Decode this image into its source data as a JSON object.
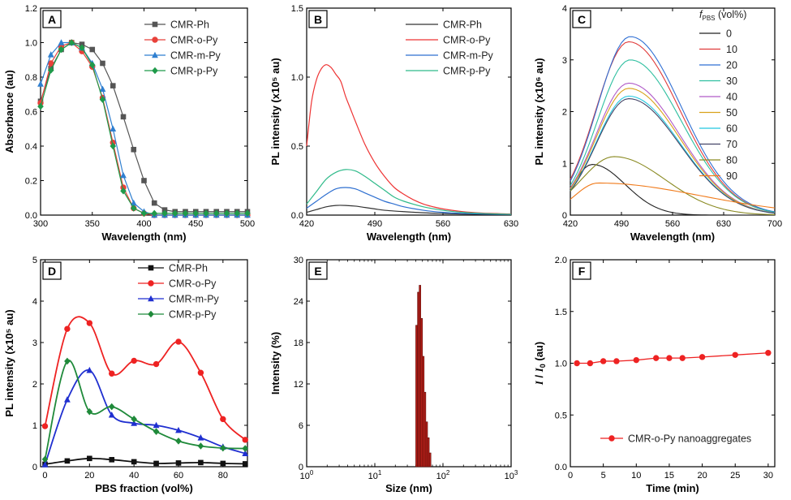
{
  "chart_data": [
    {
      "id": "A",
      "type": "line",
      "panel_label": "A",
      "xlabel": "Wavelength (nm)",
      "ylabel": "Absorbance (au)",
      "xlim": [
        300,
        500
      ],
      "ylim": [
        0,
        1.2
      ],
      "xticks": [
        300,
        350,
        400,
        450,
        500
      ],
      "yticks": [
        0.0,
        0.2,
        0.4,
        0.6,
        0.8,
        1.0,
        1.2
      ],
      "ytick_labels": [
        "0.0",
        "0.2",
        "0.4",
        "0.6",
        "0.8",
        "1.0",
        "1.2"
      ],
      "legend_position": "top-right",
      "series": [
        {
          "name": "CMR-Ph",
          "color": "#555555",
          "marker": "square",
          "x": [
            300,
            310,
            320,
            330,
            340,
            350,
            360,
            370,
            380,
            390,
            400,
            410,
            420,
            430,
            440,
            450,
            460,
            470,
            480,
            490,
            500
          ],
          "y": [
            0.66,
            0.85,
            0.96,
            1.0,
            0.99,
            0.96,
            0.88,
            0.75,
            0.57,
            0.38,
            0.2,
            0.07,
            0.03,
            0.02,
            0.02,
            0.02,
            0.02,
            0.02,
            0.02,
            0.02,
            0.02
          ]
        },
        {
          "name": "CMR-o-Py",
          "color": "#e8413a",
          "marker": "circle",
          "x": [
            300,
            310,
            320,
            330,
            340,
            350,
            360,
            370,
            380,
            390,
            400,
            410,
            420,
            430,
            440,
            450,
            460,
            470,
            480,
            490,
            500
          ],
          "y": [
            0.65,
            0.88,
            0.98,
            1.0,
            0.95,
            0.86,
            0.68,
            0.42,
            0.16,
            0.04,
            0.01,
            0.0,
            0.0,
            0.0,
            0.0,
            0.0,
            0.0,
            0.0,
            0.0,
            0.0,
            0.0
          ]
        },
        {
          "name": "CMR-m-Py",
          "color": "#2f7fd0",
          "marker": "triangle",
          "x": [
            300,
            310,
            320,
            330,
            340,
            350,
            360,
            370,
            380,
            390,
            400,
            410,
            420,
            430,
            440,
            450,
            460,
            470,
            480,
            490,
            500
          ],
          "y": [
            0.76,
            0.93,
            1.0,
            1.0,
            0.97,
            0.88,
            0.73,
            0.5,
            0.23,
            0.07,
            0.02,
            0.0,
            0.0,
            0.0,
            0.0,
            0.0,
            0.0,
            0.0,
            0.0,
            0.0,
            0.0
          ]
        },
        {
          "name": "CMR-p-Py",
          "color": "#1f9a4a",
          "marker": "diamond",
          "x": [
            300,
            310,
            320,
            330,
            340,
            350,
            360,
            370,
            380,
            390,
            400,
            410,
            420,
            430,
            440,
            450,
            460,
            470,
            480,
            490,
            500
          ],
          "y": [
            0.63,
            0.84,
            0.96,
            1.0,
            0.97,
            0.87,
            0.67,
            0.4,
            0.14,
            0.04,
            0.01,
            0.01,
            0.01,
            0.01,
            0.01,
            0.01,
            0.01,
            0.01,
            0.01,
            0.01,
            0.01
          ]
        }
      ]
    },
    {
      "id": "B",
      "type": "line",
      "panel_label": "B",
      "xlabel": "Wavelength (nm)",
      "ylabel": "PL intensity (x10⁵ au)",
      "xlim": [
        420,
        630
      ],
      "ylim": [
        0,
        1.5
      ],
      "xticks": [
        420,
        490,
        560,
        630
      ],
      "yticks": [
        0.0,
        0.5,
        1.0,
        1.5
      ],
      "ytick_labels": [
        "0.0",
        "0.5",
        "1.0",
        "1.5"
      ],
      "legend_position": "top-right",
      "series": [
        {
          "name": "CMR-Ph",
          "color": "#333333",
          "x": [
            420,
            430,
            440,
            450,
            460,
            470,
            480,
            490,
            500,
            520,
            540,
            560,
            580,
            600,
            630
          ],
          "y": [
            0.02,
            0.04,
            0.06,
            0.07,
            0.07,
            0.065,
            0.055,
            0.045,
            0.035,
            0.025,
            0.017,
            0.012,
            0.008,
            0.006,
            0.004
          ]
        },
        {
          "name": "CMR-o-Py",
          "color": "#ee3333",
          "x": [
            420,
            425,
            430,
            435,
            440,
            445,
            450,
            455,
            460,
            465,
            470,
            480,
            490,
            500,
            510,
            520,
            530,
            540,
            550,
            560,
            580,
            600,
            630
          ],
          "y": [
            0.5,
            0.82,
            0.98,
            1.06,
            1.09,
            1.07,
            1.02,
            0.97,
            0.86,
            0.77,
            0.68,
            0.51,
            0.38,
            0.28,
            0.2,
            0.15,
            0.11,
            0.08,
            0.06,
            0.045,
            0.025,
            0.015,
            0.008
          ]
        },
        {
          "name": "CMR-m-Py",
          "color": "#2e6fd0",
          "x": [
            420,
            430,
            440,
            450,
            460,
            470,
            480,
            490,
            500,
            510,
            520,
            540,
            560,
            580,
            600,
            630
          ],
          "y": [
            0.05,
            0.1,
            0.15,
            0.19,
            0.2,
            0.19,
            0.16,
            0.13,
            0.1,
            0.08,
            0.06,
            0.035,
            0.02,
            0.012,
            0.008,
            0.004
          ]
        },
        {
          "name": "CMR-p-Py",
          "color": "#2fba8a",
          "x": [
            420,
            430,
            440,
            450,
            460,
            470,
            480,
            490,
            500,
            510,
            520,
            540,
            560,
            580,
            600,
            630
          ],
          "y": [
            0.08,
            0.17,
            0.26,
            0.31,
            0.33,
            0.32,
            0.28,
            0.23,
            0.18,
            0.13,
            0.1,
            0.06,
            0.035,
            0.02,
            0.012,
            0.006
          ]
        }
      ]
    },
    {
      "id": "C",
      "type": "line",
      "panel_label": "C",
      "xlabel": "Wavelength (nm)",
      "ylabel": "PL intensity (x10⁶ au)",
      "xlim": [
        420,
        700
      ],
      "ylim": [
        0,
        4
      ],
      "xticks": [
        420,
        490,
        560,
        630,
        700
      ],
      "yticks": [
        0,
        1,
        2,
        3,
        4
      ],
      "ytick_labels": [
        "0",
        "1",
        "2",
        "3",
        "4"
      ],
      "legend_position": "top-right",
      "legend_title_prefix": "f",
      "legend_title_subscript": "PBS",
      "legend_title_suffix": " (vol%)",
      "series": [
        {
          "name": "0",
          "color": "#222222",
          "peak_x": 450,
          "peak_y": 0.98
        },
        {
          "name": "10",
          "color": "#e03a3a",
          "peak_x": 500,
          "peak_y": 3.35
        },
        {
          "name": "20",
          "color": "#2f6fd4",
          "peak_x": 502,
          "peak_y": 3.45
        },
        {
          "name": "30",
          "color": "#2fbfa0",
          "peak_x": 502,
          "peak_y": 3.0
        },
        {
          "name": "40",
          "color": "#b05ac8",
          "peak_x": 500,
          "peak_y": 2.55
        },
        {
          "name": "50",
          "color": "#d9a21a",
          "peak_x": 500,
          "peak_y": 2.45
        },
        {
          "name": "60",
          "color": "#22c8e0",
          "peak_x": 500,
          "peak_y": 2.3
        },
        {
          "name": "70",
          "color": "#444466",
          "peak_x": 500,
          "peak_y": 2.25
        },
        {
          "name": "80",
          "color": "#8a8a22",
          "peak_x": 480,
          "peak_y": 1.13
        },
        {
          "name": "90",
          "color": "#f07a1a",
          "peak_x": 458,
          "peak_y": 0.62
        }
      ]
    },
    {
      "id": "D",
      "type": "line",
      "panel_label": "D",
      "xlabel": "PBS fraction (vol%)",
      "ylabel": "PL intensity (x10⁵ au)",
      "xlim": [
        -2,
        91
      ],
      "ylim": [
        0,
        5
      ],
      "xticks": [
        0,
        20,
        40,
        60,
        80
      ],
      "yticks": [
        0,
        1,
        2,
        3,
        4,
        5
      ],
      "ytick_labels": [
        "0",
        "1",
        "2",
        "3",
        "4",
        "5"
      ],
      "legend_position": "top-center",
      "series": [
        {
          "name": "CMR-Ph",
          "color": "#111111",
          "marker": "square",
          "x": [
            0,
            10,
            20,
            30,
            40,
            50,
            60,
            70,
            80,
            90
          ],
          "y": [
            0.06,
            0.14,
            0.2,
            0.17,
            0.12,
            0.08,
            0.09,
            0.1,
            0.08,
            0.07
          ]
        },
        {
          "name": "CMR-o-Py",
          "color": "#ee2222",
          "marker": "circle",
          "x": [
            0,
            10,
            20,
            30,
            40,
            50,
            60,
            70,
            80,
            90
          ],
          "y": [
            0.98,
            3.33,
            3.47,
            2.25,
            2.56,
            2.48,
            3.02,
            2.27,
            1.15,
            0.65
          ]
        },
        {
          "name": "CMR-m-Py",
          "color": "#1f2fd0",
          "marker": "triangle",
          "x": [
            0,
            10,
            20,
            30,
            40,
            50,
            60,
            70,
            80,
            90
          ],
          "y": [
            0.05,
            1.62,
            2.33,
            1.25,
            1.05,
            1.0,
            0.88,
            0.7,
            0.48,
            0.32
          ]
        },
        {
          "name": "CMR-p-Py",
          "color": "#1f8a3a",
          "marker": "diamond",
          "x": [
            0,
            10,
            20,
            30,
            40,
            50,
            60,
            70,
            80,
            90
          ],
          "y": [
            0.18,
            2.55,
            1.33,
            1.45,
            1.15,
            0.85,
            0.62,
            0.5,
            0.45,
            0.44
          ]
        }
      ]
    },
    {
      "id": "E",
      "type": "bar",
      "panel_label": "E",
      "xlabel": "Size (nm)",
      "ylabel": "Intensity (%)",
      "xscale": "log",
      "xlim": [
        1,
        1000
      ],
      "ylim": [
        0,
        30
      ],
      "xticks": [
        1,
        10,
        100,
        1000
      ],
      "xtick_base": "10",
      "xtick_exponents": [
        "0",
        "1",
        "2",
        "3"
      ],
      "yticks": [
        0,
        6,
        12,
        18,
        24,
        30
      ],
      "ytick_labels": [
        "0",
        "6",
        "12",
        "18",
        "24",
        "30"
      ],
      "bar_color": "#b8201a",
      "x": [
        41.0,
        43.5,
        46.0,
        48.7,
        51.5,
        54.5,
        57.8,
        61.2,
        64.8
      ],
      "values": [
        20.5,
        25.3,
        26.3,
        21.5,
        16.0,
        10.8,
        6.5,
        4.2,
        2.0
      ]
    },
    {
      "id": "F",
      "type": "scatter",
      "panel_label": "F",
      "xlabel": "Time (min)",
      "ylabel_italic_1": "I",
      "ylabel_sep": " / ",
      "ylabel_italic_2": "I",
      "ylabel_subscript": "0",
      "ylabel_suffix": " (au)",
      "xlim": [
        0,
        31
      ],
      "ylim": [
        0,
        2.0
      ],
      "xticks": [
        0,
        5,
        10,
        15,
        20,
        25,
        30
      ],
      "yticks": [
        0.0,
        0.5,
        1.0,
        1.5,
        2.0
      ],
      "ytick_labels": [
        "0.0",
        "0.5",
        "1.0",
        "1.5",
        "2.0"
      ],
      "legend_position": "bottom-right",
      "series": [
        {
          "name": "CMR-o-Py nanoaggregates",
          "color": "#ee2222",
          "marker": "circle",
          "x": [
            1,
            3,
            5,
            7,
            10,
            13,
            15,
            17,
            20,
            25,
            30
          ],
          "y": [
            1.0,
            1.0,
            1.02,
            1.02,
            1.03,
            1.05,
            1.05,
            1.05,
            1.06,
            1.08,
            1.1
          ]
        }
      ]
    }
  ]
}
